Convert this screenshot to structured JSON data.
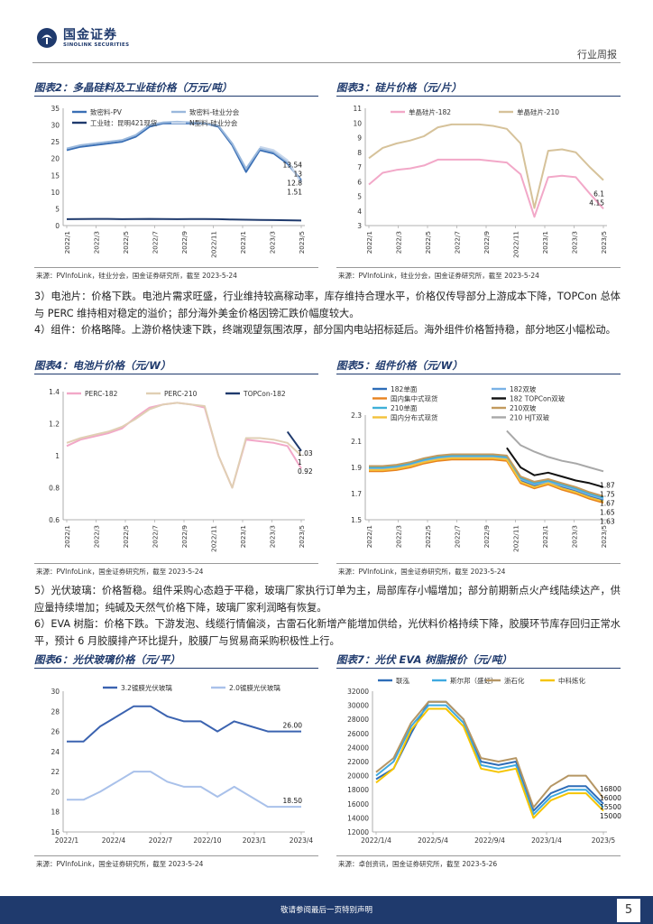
{
  "header": {
    "logo_cn": "国金证券",
    "logo_en": "SINOLINK SECURITIES",
    "report_type": "行业周报"
  },
  "paragraphs": [
    "3）电池片：价格下跌。电池片需求旺盛，行业维持较高稼动率，库存维持合理水平，价格仅传导部分上游成本下降，TOPCon 总体与 PERC 维持相对稳定的溢价；部分海外美金价格因镑汇跌价幅度较大。",
    "4）组件：价格略降。上游价格快速下跌，终端观望氛围浓厚，部分国内电站招标延后。海外组件价格暂持稳，部分地区小幅松动。",
    "5）光伏玻璃：价格暂稳。组件采购心态趋于平稳，玻璃厂家执行订单为主，局部库存小幅增加；部分前期新点火产线陆续达产，供应量持续增加；纯碱及天然气价格下降，玻璃厂家利润略有恢复。",
    "6）EVA 树脂：价格下跌。下游发泡、线缆行情偏淡，古雷石化新增产能增加供给，光伏料价格持续下降，胶膜环节库存回归正常水平，预计 6 月胶膜排产环比提升，胶膜厂与贸易商采购积极性上行。"
  ],
  "footer": {
    "disclaimer": "敬请参阅最后一页特别声明",
    "page_number": "5"
  },
  "chart_data": [
    {
      "id": "fig2",
      "type": "line",
      "title": "图表2：多晶硅料及工业硅价格（万元/吨）",
      "source": "来源：PVInfoLink，硅业分会，国金证券研究所，截至 2023-5-24",
      "ylim": [
        0,
        35
      ],
      "yticks": [
        0,
        5,
        10,
        15,
        20,
        25,
        30,
        35
      ],
      "xticks": [
        "2022/1",
        "2022/3",
        "2022/5",
        "2022/7",
        "2022/9",
        "2022/11",
        "2023/1",
        "2023/3",
        "2023/5"
      ],
      "series": [
        {
          "name": "致密料-PV",
          "color": "#3a6fb5",
          "values": [
            22.5,
            23.5,
            24.0,
            24.5,
            25.0,
            26.5,
            29.5,
            30.5,
            30.5,
            30.5,
            30.5,
            29.5,
            24.0,
            16.0,
            22.5,
            21.5,
            18.5,
            13.54
          ]
        },
        {
          "name": "致密料-硅业分会",
          "color": "#9ab8dc",
          "values": [
            23.0,
            24.0,
            24.5,
            25.0,
            25.5,
            27.0,
            30.0,
            30.8,
            31.0,
            30.8,
            30.5,
            29.8,
            24.5,
            17.0,
            23.0,
            22.0,
            19.0,
            13.0
          ]
        },
        {
          "name": "工业硅：昆明421现货",
          "color": "#1f3a6d",
          "values": [
            1.9,
            1.95,
            2.0,
            2.0,
            1.9,
            1.95,
            2.0,
            1.95,
            1.9,
            1.95,
            1.95,
            1.9,
            1.8,
            1.75,
            1.7,
            1.65,
            1.6,
            1.51
          ]
        },
        {
          "name": "N型料-硅业分会",
          "color": "#c7d7ec",
          "values": [
            null,
            null,
            null,
            null,
            null,
            null,
            null,
            null,
            null,
            null,
            null,
            null,
            null,
            null,
            23.5,
            22.5,
            19.5,
            12.8
          ]
        }
      ],
      "end_labels": [
        "13.54",
        "13",
        "12.8",
        "1.51"
      ]
    },
    {
      "id": "fig3",
      "type": "line",
      "title": "图表3：硅片价格（元/片）",
      "source": "来源：PVInfoLink，硅业分会，国金证券研究所，截至 2023-5-24",
      "ylim": [
        3,
        11
      ],
      "yticks": [
        3,
        4,
        5,
        6,
        7,
        8,
        9,
        10,
        11
      ],
      "xticks": [
        "2022/1",
        "2022/3",
        "2022/5",
        "2022/7",
        "2022/9",
        "2022/11",
        "2023/1",
        "2023/3",
        "2023/5"
      ],
      "series": [
        {
          "name": "单晶硅片-182",
          "color": "#f2a8c8",
          "values": [
            5.8,
            6.6,
            6.8,
            6.9,
            7.1,
            7.5,
            7.5,
            7.5,
            7.5,
            7.4,
            7.3,
            6.5,
            3.6,
            6.3,
            6.4,
            6.3,
            5.2,
            4.15
          ]
        },
        {
          "name": "单晶硅片-210",
          "color": "#d6c29a",
          "values": [
            7.6,
            8.3,
            8.6,
            8.8,
            9.1,
            9.7,
            9.9,
            9.9,
            9.9,
            9.8,
            9.6,
            8.6,
            4.2,
            8.1,
            8.2,
            8.0,
            7.0,
            6.1
          ]
        }
      ],
      "end_labels": [
        "6.1",
        "4.15"
      ]
    },
    {
      "id": "fig4",
      "type": "line",
      "title": "图表4：电池片价格（元/W）",
      "source": "来源：PVInfoLink，国金证券研究所，截至 2023-5-24",
      "ylim": [
        0.6,
        1.4
      ],
      "yticks": [
        0.6,
        0.8,
        1.0,
        1.2,
        1.4
      ],
      "xticks": [
        "2022/1",
        "2022/3",
        "2022/5",
        "2022/7",
        "2022/9",
        "2022/11",
        "2023/1",
        "2023/3",
        "2023/5"
      ],
      "series": [
        {
          "name": "PERC-182",
          "color": "#f2a8c8",
          "values": [
            1.06,
            1.1,
            1.12,
            1.14,
            1.17,
            1.24,
            1.3,
            1.32,
            1.33,
            1.32,
            1.3,
            1.0,
            0.8,
            1.1,
            1.09,
            1.08,
            1.06,
            0.92
          ]
        },
        {
          "name": "PERC-210",
          "color": "#e0cfb4",
          "values": [
            1.08,
            1.11,
            1.13,
            1.15,
            1.18,
            1.23,
            1.29,
            1.32,
            1.33,
            1.32,
            1.31,
            1.0,
            0.8,
            1.11,
            1.11,
            1.1,
            1.08,
            1.0
          ]
        },
        {
          "name": "TOPCon-182",
          "color": "#1f3a6d",
          "values": [
            null,
            null,
            null,
            null,
            null,
            null,
            null,
            null,
            null,
            null,
            null,
            null,
            null,
            null,
            null,
            null,
            1.15,
            1.03
          ]
        }
      ],
      "end_labels": [
        "1.03",
        "1",
        "0.92"
      ]
    },
    {
      "id": "fig5",
      "type": "line",
      "title": "图表5：组件价格（元/W）",
      "source": "来源：PVInfoLink，国金证券研究所，截至 2023-5-24",
      "ylim": [
        1.5,
        2.3
      ],
      "yticks": [
        1.5,
        1.7,
        1.9,
        2.1,
        2.3
      ],
      "xticks": [
        "2022/1",
        "2022/3",
        "2022/5",
        "2022/7",
        "2022/9",
        "2022/11",
        "2023/1",
        "2023/3",
        "2023/5"
      ],
      "series": [
        {
          "name": "182单面",
          "color": "#2e6db8",
          "values": [
            1.88,
            1.88,
            1.89,
            1.91,
            1.94,
            1.96,
            1.97,
            1.97,
            1.97,
            1.97,
            1.96,
            1.8,
            1.76,
            1.78,
            1.75,
            1.72,
            1.68,
            1.65
          ]
        },
        {
          "name": "182双玻",
          "color": "#7ab2e6",
          "values": [
            1.89,
            1.89,
            1.9,
            1.92,
            1.95,
            1.97,
            1.98,
            1.98,
            1.98,
            1.98,
            1.97,
            1.81,
            1.77,
            1.79,
            1.76,
            1.73,
            1.69,
            1.66
          ]
        },
        {
          "name": "国内集中式现货",
          "color": "#e8821e",
          "values": [
            1.87,
            1.87,
            1.88,
            1.9,
            1.93,
            1.95,
            1.96,
            1.96,
            1.96,
            1.96,
            1.95,
            1.78,
            1.74,
            1.77,
            1.73,
            1.7,
            1.66,
            1.63
          ]
        },
        {
          "name": "182 TOPCon双玻",
          "color": "#111111",
          "values": [
            null,
            null,
            null,
            null,
            null,
            null,
            null,
            null,
            null,
            null,
            2.05,
            1.9,
            1.84,
            1.86,
            1.83,
            1.8,
            1.78,
            1.75
          ]
        },
        {
          "name": "210单面",
          "color": "#3fb0d8",
          "values": [
            1.9,
            1.9,
            1.91,
            1.93,
            1.96,
            1.98,
            1.99,
            1.99,
            1.99,
            1.99,
            1.98,
            1.82,
            1.78,
            1.8,
            1.77,
            1.74,
            1.7,
            1.67
          ]
        },
        {
          "name": "210双玻",
          "color": "#c29a5e",
          "values": [
            1.91,
            1.91,
            1.92,
            1.94,
            1.97,
            1.99,
            2.0,
            2.0,
            2.0,
            2.0,
            1.99,
            1.83,
            1.79,
            1.81,
            1.78,
            1.75,
            1.71,
            1.68
          ]
        },
        {
          "name": "国内分布式现货",
          "color": "#f3c23a",
          "values": [
            1.88,
            1.88,
            1.89,
            1.91,
            1.94,
            1.96,
            1.97,
            1.97,
            1.97,
            1.97,
            1.96,
            1.79,
            1.75,
            1.78,
            1.74,
            1.71,
            1.67,
            1.64
          ]
        },
        {
          "name": "210 HJT双玻",
          "color": "#a8a8a8",
          "values": [
            null,
            null,
            null,
            null,
            null,
            null,
            null,
            null,
            null,
            null,
            2.18,
            2.07,
            2.02,
            1.98,
            1.95,
            1.93,
            1.9,
            1.87
          ]
        }
      ],
      "end_labels": [
        "1.87",
        "1.75",
        "1.67",
        "1.65",
        "1.63"
      ]
    },
    {
      "id": "fig6",
      "type": "line",
      "title": "图表6：光伏玻璃价格（元/平）",
      "source": "来源：PVInfoLink，国金证券研究所，截至 2023-5-24",
      "ylim": [
        16,
        30
      ],
      "yticks": [
        16,
        18,
        20,
        22,
        24,
        26,
        28,
        30
      ],
      "xticks": [
        "2022/1",
        "2022/4",
        "2022/7",
        "2022/10",
        "2023/1",
        "2023/4"
      ],
      "series": [
        {
          "name": "3.2镀膜光伏玻璃",
          "color": "#3b63b0",
          "values": [
            25.0,
            25.0,
            26.5,
            27.5,
            28.5,
            28.5,
            27.5,
            27.0,
            27.0,
            26.0,
            27.0,
            26.5,
            26.0,
            26.0,
            26.0
          ]
        },
        {
          "name": "2.0镀膜光伏玻璃",
          "color": "#a9c1ea",
          "values": [
            19.2,
            19.2,
            20.0,
            21.0,
            22.0,
            22.0,
            21.0,
            20.5,
            20.5,
            19.5,
            20.5,
            19.5,
            18.5,
            18.5,
            18.5
          ]
        }
      ],
      "end_labels": [
        "26.00",
        "18.50"
      ]
    },
    {
      "id": "fig7",
      "type": "line",
      "title": "图表7：光伏 EVA 树脂报价（元/吨）",
      "source": "来源：卓创资讯，国金证券研究所，截至 2023-5-26",
      "ylim": [
        12000,
        32000
      ],
      "yticks": [
        12000,
        14000,
        16000,
        18000,
        20000,
        22000,
        24000,
        26000,
        28000,
        30000,
        32000
      ],
      "xticks": [
        "2022/1/4",
        "2022/5/4",
        "2022/9/4",
        "2023/1/4",
        "2023/5"
      ],
      "series": [
        {
          "name": "联泓",
          "color": "#2e6db8",
          "values": [
            19500,
            21000,
            26000,
            30500,
            30500,
            28000,
            22000,
            21500,
            22000,
            15000,
            17500,
            18500,
            18500,
            16000
          ]
        },
        {
          "name": "斯尔邦（盛虹）",
          "color": "#3fa9e0",
          "values": [
            20000,
            22000,
            27000,
            30000,
            30000,
            27500,
            21500,
            21000,
            21500,
            14500,
            17000,
            18000,
            18000,
            15500
          ]
        },
        {
          "name": "浙石化",
          "color": "#b59664",
          "values": [
            20500,
            22500,
            27500,
            30500,
            30500,
            28000,
            22500,
            22000,
            22500,
            15500,
            18500,
            20000,
            20000,
            16800
          ]
        },
        {
          "name": "中科炼化",
          "color": "#f5c400",
          "values": [
            19000,
            21000,
            26500,
            29500,
            29500,
            27000,
            21000,
            20500,
            21000,
            14000,
            16500,
            17500,
            17500,
            15000
          ]
        }
      ],
      "end_labels": [
        "16800",
        "16000",
        "15500",
        "15000"
      ]
    }
  ]
}
